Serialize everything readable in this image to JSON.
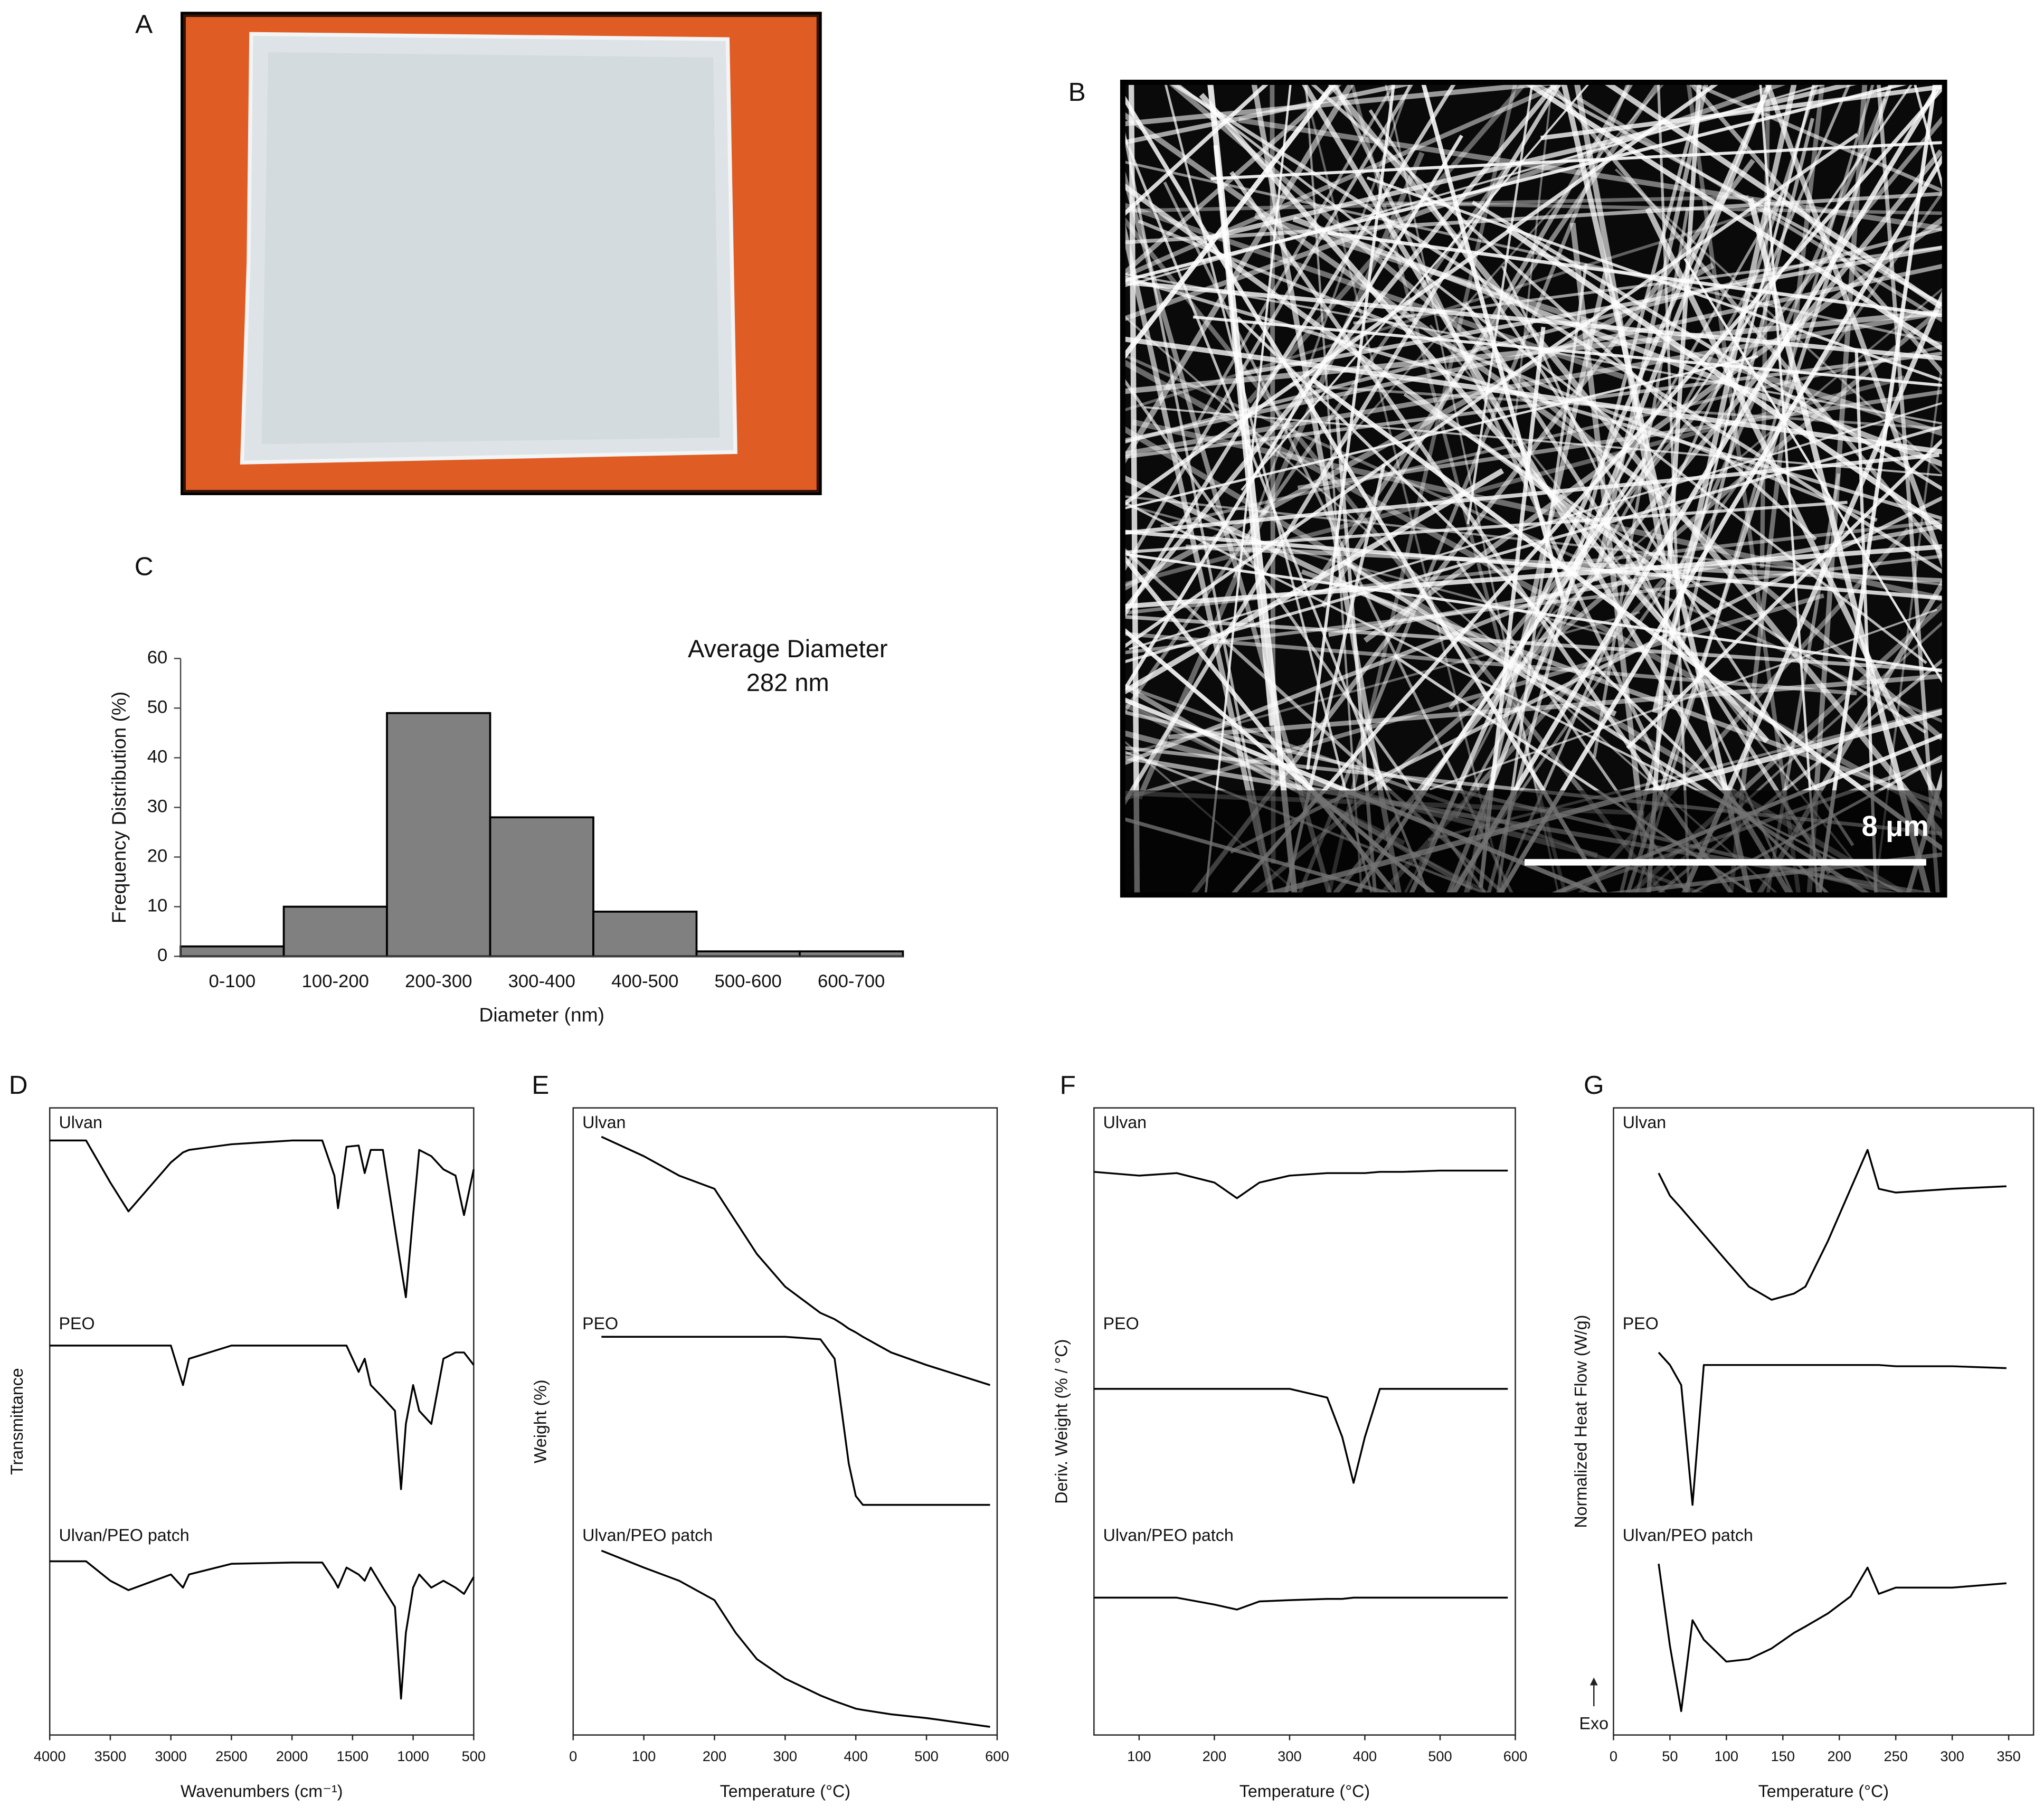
{
  "panel_labels": [
    "A",
    "B",
    "C",
    "D",
    "E",
    "F",
    "G"
  ],
  "scale_bar": "8 μm",
  "chart_data": [
    {
      "type": "bar",
      "categories": [
        "0-100",
        "100-200",
        "200-300",
        "300-400",
        "400-500",
        "500-600",
        "600-700"
      ],
      "values": [
        2,
        10,
        49,
        28,
        9,
        1,
        1
      ],
      "color": "#808080",
      "ylim": [
        0,
        60
      ],
      "yticks": [
        0,
        10,
        20,
        30,
        40,
        50,
        60
      ],
      "xlabel": "Diameter (nm)",
      "ylabel": "Frequency Distribution (%)",
      "annotations": [
        "Average Diameter",
        "282 nm"
      ]
    },
    {
      "type": "line",
      "x": [
        4000,
        3700,
        3500,
        3350,
        3000,
        2900,
        2850,
        2500,
        2000,
        1750,
        1650,
        1620,
        1550,
        1450,
        1400,
        1350,
        1250,
        1150,
        1100,
        1060,
        1000,
        950,
        850,
        750,
        650,
        580,
        500
      ],
      "series": [
        {
          "name": "Ulvan",
          "color": "#000000",
          "values": [
            94.8,
            94.8,
            88.1,
            83.5,
            91.3,
            92.9,
            93.3,
            94.2,
            94.8,
            94.8,
            89.2,
            84.0,
            93.8,
            94.0,
            89.6,
            93.3,
            93.3,
            80.8,
            74.6,
            69.8,
            82.9,
            93.3,
            92.3,
            90.2,
            89.2,
            82.9,
            90.2
          ]
        },
        {
          "name": "PEO",
          "color": "#000000",
          "values": [
            62.1,
            62.1,
            62.1,
            62.1,
            62.1,
            55.8,
            60.0,
            62.1,
            62.1,
            62.1,
            62.1,
            62.1,
            62.1,
            57.9,
            60.0,
            55.8,
            53.8,
            51.7,
            39.2,
            49.6,
            55.8,
            51.7,
            49.6,
            60.0,
            61.0,
            61.0,
            59.0
          ]
        },
        {
          "name": "Ulvan/PEO patch",
          "color": "#000000",
          "values": [
            27.7,
            27.7,
            24.6,
            23.1,
            25.6,
            23.5,
            25.6,
            27.3,
            27.5,
            27.5,
            24.6,
            23.5,
            26.7,
            25.6,
            24.6,
            26.7,
            23.5,
            20.4,
            5.8,
            16.3,
            23.5,
            25.6,
            23.5,
            24.6,
            23.5,
            22.5,
            25.2
          ]
        }
      ],
      "xlim": [
        4000,
        500
      ],
      "xticks": [
        4000,
        3500,
        3000,
        2500,
        2000,
        1500,
        1000,
        500
      ],
      "ylim": [
        0,
        100
      ],
      "xlabel": "Wavenumbers (cm⁻¹)",
      "ylabel": "Transmittance"
    },
    {
      "type": "line",
      "x": [
        40,
        100,
        150,
        200,
        230,
        260,
        300,
        350,
        370,
        380,
        390,
        400,
        410,
        450,
        500,
        590
      ],
      "series": [
        {
          "name": "Ulvan",
          "color": "#000000",
          "values": [
            95.4,
            92.3,
            89.2,
            87.1,
            81.9,
            76.7,
            71.5,
            67.3,
            66.3,
            65.6,
            64.8,
            64.2,
            63.5,
            61.0,
            59.0,
            55.8
          ]
        },
        {
          "name": "PEO",
          "color": "#000000",
          "values": [
            63.5,
            63.5,
            63.5,
            63.5,
            63.5,
            63.5,
            63.5,
            63.1,
            60.0,
            51.7,
            43.3,
            38.1,
            36.7,
            36.7,
            36.7,
            36.7
          ]
        },
        {
          "name": "Ulvan/PEO patch",
          "color": "#000000",
          "values": [
            29.4,
            26.7,
            24.6,
            21.5,
            16.3,
            12.1,
            9.0,
            6.3,
            5.4,
            5.0,
            4.6,
            4.2,
            4.0,
            3.3,
            2.7,
            1.3
          ]
        }
      ],
      "xlim": [
        0,
        600
      ],
      "xticks": [
        0,
        100,
        200,
        300,
        400,
        500,
        600
      ],
      "ylim": [
        0,
        100
      ],
      "xlabel": "Temperature (°C)",
      "ylabel": "Weight (%)"
    },
    {
      "type": "line",
      "x": [
        40,
        100,
        150,
        200,
        230,
        260,
        300,
        350,
        370,
        385,
        400,
        420,
        450,
        500,
        590
      ],
      "series": [
        {
          "name": "Ulvan",
          "color": "#000000",
          "values": [
            89.8,
            89.2,
            89.6,
            88.1,
            85.6,
            88.1,
            89.2,
            89.6,
            89.6,
            89.6,
            89.6,
            89.8,
            89.8,
            90.0,
            90.0
          ]
        },
        {
          "name": "PEO",
          "color": "#000000",
          "values": [
            55.2,
            55.2,
            55.2,
            55.2,
            55.2,
            55.2,
            55.2,
            53.8,
            47.5,
            40.2,
            47.5,
            55.2,
            55.2,
            55.2,
            55.2
          ]
        },
        {
          "name": "Ulvan/PEO patch",
          "color": "#000000",
          "values": [
            21.9,
            21.9,
            21.9,
            20.8,
            20.0,
            21.3,
            21.5,
            21.7,
            21.7,
            21.9,
            21.9,
            21.9,
            21.9,
            21.9,
            21.9
          ]
        }
      ],
      "xlim": [
        40,
        600
      ],
      "xticks": [
        100,
        200,
        300,
        400,
        500,
        600
      ],
      "ylim": [
        0,
        100
      ],
      "xlabel": "Temperature (°C)",
      "ylabel": "Deriv. Weight (% / °C)"
    },
    {
      "type": "line",
      "x": [
        40,
        50,
        60,
        70,
        80,
        100,
        120,
        140,
        160,
        170,
        190,
        210,
        225,
        235,
        250,
        300,
        348
      ],
      "series": [
        {
          "name": "Ulvan",
          "color": "#000000",
          "values": [
            89.6,
            86.0,
            84.0,
            81.9,
            79.8,
            75.6,
            71.5,
            69.4,
            70.4,
            71.5,
            78.8,
            87.1,
            93.3,
            87.1,
            86.5,
            87.1,
            87.5
          ]
        },
        {
          "name": "PEO",
          "color": "#000000",
          "values": [
            61.0,
            59.0,
            55.8,
            36.7,
            59.0,
            59.0,
            59.0,
            59.0,
            59.0,
            59.0,
            59.0,
            59.0,
            59.0,
            59.0,
            58.8,
            58.8,
            58.5
          ]
        },
        {
          "name": "Ulvan/PEO patch",
          "color": "#000000",
          "values": [
            27.3,
            14.2,
            3.8,
            18.3,
            15.2,
            11.7,
            12.1,
            13.8,
            16.3,
            17.3,
            19.4,
            22.1,
            26.7,
            22.5,
            23.5,
            23.5,
            24.2
          ]
        }
      ],
      "xlim": [
        0,
        372
      ],
      "xticks": [
        0,
        50,
        100,
        150,
        200,
        250,
        300,
        350
      ],
      "ylim": [
        0,
        100
      ],
      "xlabel": "Temperature (°C)",
      "ylabel": "Normalized Heat Flow (W/g)",
      "annotation": "Exo"
    }
  ]
}
